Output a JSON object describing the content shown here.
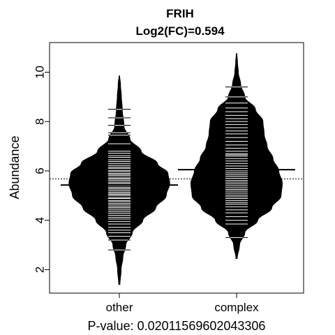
{
  "chart_data": {
    "type": "beanplot",
    "title": "FRIH",
    "subtitle": "Log2(FC)=0.594",
    "ylabel": "Abundance",
    "xlabel": "P-value: 0.02011569602043306",
    "categories": [
      "other",
      "complex"
    ],
    "ylim": [
      1.05,
      11.2
    ],
    "yticks": [
      2,
      4,
      6,
      8,
      10
    ],
    "overall_mean": 5.68,
    "series": [
      {
        "name": "other",
        "mean": 5.43,
        "min": 1.4,
        "max": 9.85,
        "density": [
          [
            1.4,
            0.01
          ],
          [
            2.0,
            0.03
          ],
          [
            2.5,
            0.06
          ],
          [
            3.0,
            0.11
          ],
          [
            3.5,
            0.22
          ],
          [
            4.0,
            0.4
          ],
          [
            4.5,
            0.62
          ],
          [
            5.0,
            0.8
          ],
          [
            5.5,
            0.86
          ],
          [
            5.9,
            0.83
          ],
          [
            6.3,
            0.65
          ],
          [
            6.8,
            0.37
          ],
          [
            7.3,
            0.18
          ],
          [
            7.8,
            0.08
          ],
          [
            8.5,
            0.05
          ],
          [
            9.0,
            0.035
          ],
          [
            9.5,
            0.02
          ],
          [
            9.85,
            0.005
          ]
        ],
        "observations": [
          2.8,
          3.2,
          3.35,
          3.5,
          3.6,
          3.72,
          3.85,
          3.95,
          4.05,
          4.12,
          4.2,
          4.28,
          4.35,
          4.42,
          4.5,
          4.55,
          4.62,
          4.68,
          4.75,
          4.8,
          4.88,
          4.92,
          5.0,
          5.05,
          5.1,
          5.15,
          5.22,
          5.28,
          5.33,
          5.4,
          5.45,
          5.5,
          5.55,
          5.62,
          5.68,
          5.72,
          5.8,
          5.85,
          5.9,
          5.97,
          6.02,
          6.1,
          6.15,
          6.22,
          6.3,
          6.38,
          6.45,
          6.55,
          6.62,
          6.72,
          6.8,
          7.1,
          7.45,
          7.55,
          7.85,
          8.15,
          8.5
        ]
      },
      {
        "name": "complex",
        "mean": 6.05,
        "min": 2.45,
        "max": 10.75,
        "density": [
          [
            2.45,
            0.01
          ],
          [
            3.0,
            0.05
          ],
          [
            3.5,
            0.14
          ],
          [
            4.0,
            0.36
          ],
          [
            4.5,
            0.6
          ],
          [
            5.0,
            0.76
          ],
          [
            5.5,
            0.78
          ],
          [
            6.0,
            0.72
          ],
          [
            6.5,
            0.62
          ],
          [
            7.0,
            0.52
          ],
          [
            7.5,
            0.47
          ],
          [
            8.0,
            0.45
          ],
          [
            8.5,
            0.32
          ],
          [
            9.0,
            0.14
          ],
          [
            9.5,
            0.07
          ],
          [
            10.0,
            0.03
          ],
          [
            10.4,
            0.015
          ],
          [
            10.75,
            0.005
          ]
        ],
        "observations": [
          3.3,
          3.85,
          4.0,
          4.15,
          4.3,
          4.42,
          4.55,
          4.65,
          4.72,
          4.8,
          4.88,
          4.95,
          5.02,
          5.1,
          5.18,
          5.25,
          5.32,
          5.4,
          5.48,
          5.55,
          5.62,
          5.7,
          5.78,
          5.85,
          5.92,
          6.0,
          6.1,
          6.2,
          6.3,
          6.4,
          6.5,
          6.6,
          6.65,
          6.7,
          6.8,
          6.92,
          7.05,
          7.2,
          7.35,
          7.5,
          7.62,
          7.75,
          7.88,
          8.0,
          8.12,
          8.25,
          8.4,
          8.55,
          8.75,
          9.0,
          9.4
        ]
      }
    ],
    "colors": {
      "bean": "#000000",
      "line": "#ffffff",
      "background": "#ffffff"
    }
  }
}
